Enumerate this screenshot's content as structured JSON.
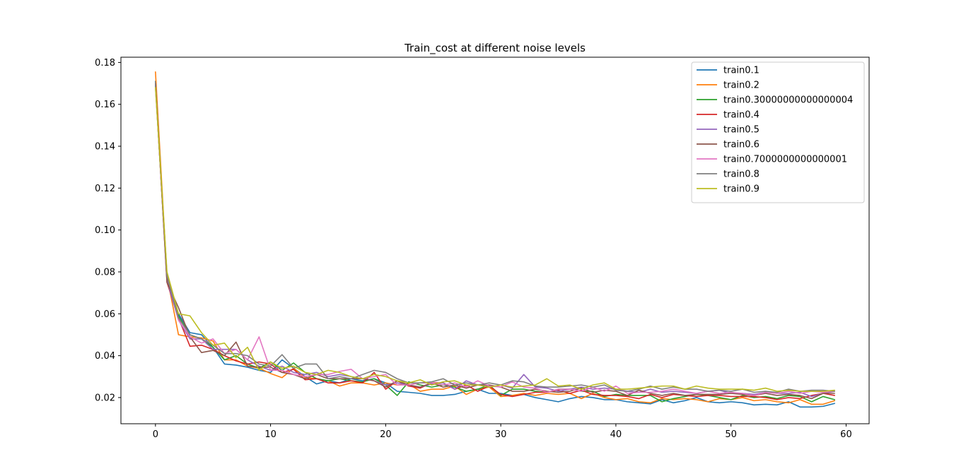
{
  "chart_data": {
    "type": "line",
    "title": "Train_cost at different noise levels",
    "xlabel": "",
    "ylabel": "",
    "xlim": [
      -3,
      62
    ],
    "ylim": [
      0.0075,
      0.1825
    ],
    "x_ticks": [
      0,
      10,
      20,
      30,
      40,
      50,
      60
    ],
    "y_ticks": [
      0.02,
      0.04,
      0.06,
      0.08,
      0.1,
      0.12,
      0.14,
      0.16,
      0.18
    ],
    "y_tick_labels": [
      "0.02",
      "0.04",
      "0.06",
      "0.08",
      "0.10",
      "0.12",
      "0.14",
      "0.16",
      "0.18"
    ],
    "legend_position": "upper-right",
    "grid": false,
    "series": [
      {
        "name": "train0.1",
        "color": "#1f77b4",
        "values": [
          0.171,
          0.077,
          0.06,
          0.051,
          0.05,
          0.044,
          0.036,
          0.0355,
          0.0345,
          0.033,
          0.032,
          0.038,
          0.034,
          0.03,
          0.0265,
          0.028,
          0.027,
          0.029,
          0.028,
          0.029,
          0.027,
          0.023,
          0.0225,
          0.022,
          0.021,
          0.021,
          0.0215,
          0.023,
          0.024,
          0.022,
          0.022,
          0.021,
          0.0215,
          0.02,
          0.019,
          0.018,
          0.0195,
          0.0205,
          0.02,
          0.019,
          0.019,
          0.018,
          0.0175,
          0.017,
          0.019,
          0.0175,
          0.0185,
          0.02,
          0.018,
          0.0175,
          0.018,
          0.0175,
          0.0165,
          0.0168,
          0.0165,
          0.018,
          0.0155,
          0.0155,
          0.0158,
          0.0172
        ]
      },
      {
        "name": "train0.2",
        "color": "#ff7f0e",
        "values": [
          0.1755,
          0.078,
          0.05,
          0.049,
          0.0485,
          0.047,
          0.038,
          0.038,
          0.035,
          0.034,
          0.0315,
          0.0295,
          0.034,
          0.0295,
          0.029,
          0.028,
          0.0255,
          0.027,
          0.027,
          0.026,
          0.027,
          0.026,
          0.0265,
          0.023,
          0.024,
          0.024,
          0.0255,
          0.0215,
          0.024,
          0.025,
          0.0205,
          0.021,
          0.022,
          0.021,
          0.022,
          0.0215,
          0.022,
          0.0195,
          0.022,
          0.02,
          0.019,
          0.0195,
          0.018,
          0.0175,
          0.0195,
          0.019,
          0.0195,
          0.019,
          0.018,
          0.0195,
          0.019,
          0.02,
          0.0185,
          0.019,
          0.018,
          0.0175,
          0.019,
          0.0168,
          0.0168,
          0.0185
        ]
      },
      {
        "name": "train0.30000000000000004",
        "color": "#2ca02c",
        "values": [
          0.169,
          0.078,
          0.059,
          0.05,
          0.048,
          0.044,
          0.038,
          0.04,
          0.036,
          0.034,
          0.037,
          0.033,
          0.0365,
          0.032,
          0.029,
          0.028,
          0.029,
          0.028,
          0.0275,
          0.029,
          0.026,
          0.021,
          0.0275,
          0.026,
          0.025,
          0.026,
          0.025,
          0.023,
          0.024,
          0.026,
          0.021,
          0.024,
          0.024,
          0.023,
          0.0225,
          0.024,
          0.024,
          0.023,
          0.023,
          0.0205,
          0.0215,
          0.021,
          0.021,
          0.021,
          0.018,
          0.0195,
          0.0205,
          0.0215,
          0.021,
          0.02,
          0.019,
          0.021,
          0.02,
          0.0205,
          0.0195,
          0.021,
          0.0205,
          0.018,
          0.0205,
          0.019
        ]
      },
      {
        "name": "train0.4",
        "color": "#d62728",
        "values": [
          0.17,
          0.075,
          0.058,
          0.0445,
          0.045,
          0.043,
          0.04,
          0.0375,
          0.036,
          0.037,
          0.036,
          0.032,
          0.0335,
          0.0285,
          0.029,
          0.027,
          0.027,
          0.028,
          0.027,
          0.032,
          0.024,
          0.028,
          0.0255,
          0.0245,
          0.027,
          0.027,
          0.024,
          0.026,
          0.023,
          0.0255,
          0.0215,
          0.0205,
          0.0215,
          0.0225,
          0.0225,
          0.0235,
          0.022,
          0.0235,
          0.0215,
          0.021,
          0.021,
          0.0205,
          0.0195,
          0.0215,
          0.02,
          0.0215,
          0.021,
          0.0205,
          0.021,
          0.021,
          0.0205,
          0.0205,
          0.0205,
          0.02,
          0.019,
          0.02,
          0.0195,
          0.021,
          0.022,
          0.021
        ]
      },
      {
        "name": "train0.5",
        "color": "#9467bd",
        "values": [
          0.169,
          0.076,
          0.057,
          0.048,
          0.048,
          0.043,
          0.043,
          0.043,
          0.038,
          0.035,
          0.033,
          0.035,
          0.032,
          0.031,
          0.032,
          0.03,
          0.031,
          0.03,
          0.029,
          0.028,
          0.026,
          0.027,
          0.026,
          0.025,
          0.0265,
          0.027,
          0.024,
          0.028,
          0.026,
          0.025,
          0.026,
          0.0245,
          0.031,
          0.025,
          0.0245,
          0.023,
          0.024,
          0.025,
          0.024,
          0.0245,
          0.024,
          0.023,
          0.0225,
          0.024,
          0.0225,
          0.023,
          0.0225,
          0.022,
          0.023,
          0.0235,
          0.022,
          0.022,
          0.0215,
          0.0225,
          0.022,
          0.022,
          0.0225,
          0.0205,
          0.022,
          0.023
        ]
      },
      {
        "name": "train0.6",
        "color": "#8c564b",
        "values": [
          0.17,
          0.075,
          0.063,
          0.049,
          0.0415,
          0.0425,
          0.04,
          0.0465,
          0.035,
          0.0345,
          0.0345,
          0.032,
          0.031,
          0.029,
          0.031,
          0.029,
          0.029,
          0.029,
          0.029,
          0.028,
          0.025,
          0.028,
          0.026,
          0.025,
          0.027,
          0.025,
          0.026,
          0.0245,
          0.026,
          0.026,
          0.025,
          0.023,
          0.023,
          0.024,
          0.023,
          0.0225,
          0.023,
          0.0245,
          0.0225,
          0.0235,
          0.023,
          0.021,
          0.0235,
          0.022,
          0.021,
          0.022,
          0.021,
          0.0215,
          0.0215,
          0.0215,
          0.022,
          0.0215,
          0.021,
          0.022,
          0.021,
          0.0215,
          0.021,
          0.0195,
          0.022,
          0.022
        ]
      },
      {
        "name": "train0.7000000000000001",
        "color": "#e377c2",
        "values": [
          0.168,
          0.079,
          0.057,
          0.049,
          0.046,
          0.048,
          0.041,
          0.043,
          0.038,
          0.049,
          0.033,
          0.033,
          0.031,
          0.03,
          0.031,
          0.031,
          0.0325,
          0.0335,
          0.029,
          0.03,
          0.031,
          0.026,
          0.026,
          0.027,
          0.027,
          0.026,
          0.027,
          0.025,
          0.028,
          0.0255,
          0.025,
          0.0275,
          0.025,
          0.0245,
          0.0225,
          0.024,
          0.024,
          0.023,
          0.025,
          0.023,
          0.0255,
          0.022,
          0.0225,
          0.0225,
          0.023,
          0.024,
          0.023,
          0.022,
          0.023,
          0.022,
          0.0225,
          0.022,
          0.021,
          0.0225,
          0.022,
          0.023,
          0.022,
          0.023,
          0.0225,
          0.023
        ]
      },
      {
        "name": "train0.8",
        "color": "#7f7f7f",
        "values": [
          0.17,
          0.078,
          0.058,
          0.05,
          0.048,
          0.045,
          0.041,
          0.041,
          0.04,
          0.036,
          0.035,
          0.0405,
          0.034,
          0.036,
          0.036,
          0.029,
          0.03,
          0.029,
          0.031,
          0.033,
          0.032,
          0.029,
          0.027,
          0.027,
          0.0275,
          0.029,
          0.026,
          0.027,
          0.026,
          0.027,
          0.026,
          0.028,
          0.0275,
          0.0255,
          0.025,
          0.025,
          0.0255,
          0.026,
          0.025,
          0.026,
          0.0235,
          0.023,
          0.024,
          0.0255,
          0.024,
          0.025,
          0.024,
          0.024,
          0.023,
          0.0235,
          0.023,
          0.024,
          0.0225,
          0.023,
          0.0225,
          0.024,
          0.023,
          0.0235,
          0.0235,
          0.023
        ]
      },
      {
        "name": "train0.9",
        "color": "#bcbd22",
        "values": [
          0.168,
          0.08,
          0.06,
          0.059,
          0.051,
          0.045,
          0.046,
          0.039,
          0.044,
          0.033,
          0.037,
          0.034,
          0.035,
          0.032,
          0.031,
          0.033,
          0.032,
          0.03,
          0.029,
          0.031,
          0.03,
          0.028,
          0.027,
          0.0285,
          0.026,
          0.0275,
          0.028,
          0.026,
          0.026,
          0.025,
          0.026,
          0.025,
          0.0255,
          0.026,
          0.029,
          0.0255,
          0.026,
          0.024,
          0.026,
          0.027,
          0.024,
          0.024,
          0.0245,
          0.025,
          0.0255,
          0.0255,
          0.024,
          0.0255,
          0.0245,
          0.024,
          0.024,
          0.024,
          0.0235,
          0.0245,
          0.023,
          0.0235,
          0.023,
          0.023,
          0.023,
          0.0235
        ]
      }
    ]
  }
}
